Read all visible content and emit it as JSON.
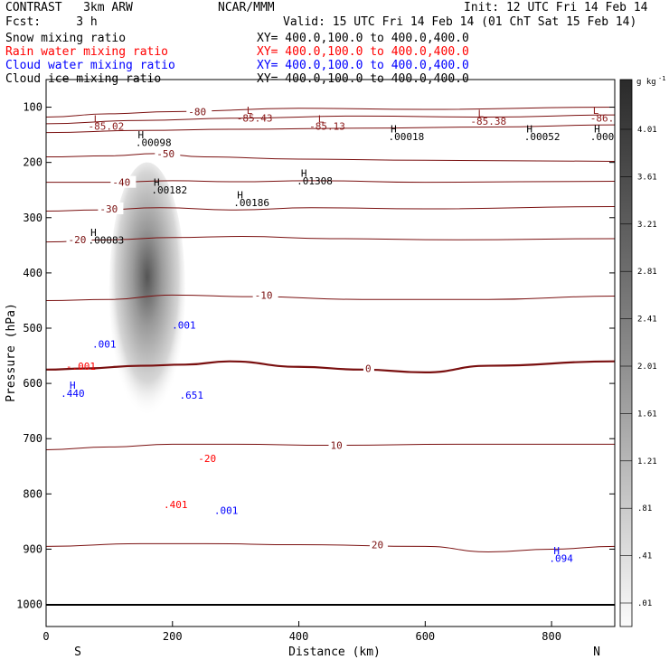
{
  "header": {
    "model": "CONTRAST   3km ARW",
    "center": "NCAR/MMM",
    "init": "Init: 12 UTC Fri 14 Feb 14",
    "fcst": "Fcst:     3 h",
    "valid": "Valid: 15 UTC Fri 14 Feb 14 (01 ChT Sat 15 Feb 14)"
  },
  "fields": [
    {
      "name": "Snow mixing ratio",
      "xy": "XY= 400.0,100.0 to 400.0,400.0",
      "color": "#000000"
    },
    {
      "name": "Rain water mixing ratio",
      "xy": "XY= 400.0,100.0 to 400.0,400.0",
      "color": "#ff0000"
    },
    {
      "name": "Cloud water mixing ratio",
      "xy": "XY= 400.0,100.0 to 400.0,400.0",
      "color": "#0000ff"
    },
    {
      "name": "Cloud ice mixing ratio",
      "xy": "XY= 400.0,100.0 to 400.0,400.0",
      "color": "#000000"
    }
  ],
  "chart_data": {
    "type": "contour",
    "xlabel": "Distance (km)",
    "ylabel": "Pressure (hPa)",
    "xlim": [
      0,
      900
    ],
    "ylim": [
      1040,
      50
    ],
    "x_ticks": [
      0,
      200,
      400,
      600,
      800
    ],
    "x_tick_labels": [
      "0",
      "200",
      "400",
      "600",
      "800"
    ],
    "y_ticks": [
      100,
      200,
      300,
      400,
      500,
      600,
      700,
      800,
      900,
      1000
    ],
    "y_tick_labels": [
      "100",
      "200",
      "300",
      "400",
      "500",
      "600",
      "700",
      "800",
      "900",
      "1000"
    ],
    "end_labels": {
      "left": "S",
      "right": "N"
    },
    "colorbar": {
      "unit": "g kg",
      "unit_exp": "-1",
      "labels": [
        "4.01",
        "3.61",
        "3.21",
        "2.81",
        "2.41",
        "2.01",
        "1.61",
        "1.21",
        ".81",
        ".41",
        ".01"
      ]
    },
    "temperature_contours": [
      {
        "value": -80,
        "label": "-80",
        "p": [
          [
            0,
            118
          ],
          [
            100,
            112
          ],
          [
            200,
            108
          ],
          [
            400,
            102
          ],
          [
            600,
            104
          ],
          [
            900,
            100
          ]
        ],
        "label_at": [
          225,
          108
        ]
      },
      {
        "value": -70,
        "label": "",
        "p": [
          [
            0,
            130
          ],
          [
            150,
            124
          ],
          [
            300,
            120
          ],
          [
            500,
            116
          ],
          [
            700,
            118
          ],
          [
            900,
            114
          ]
        ]
      },
      {
        "value": -60,
        "label": "",
        "p": [
          [
            0,
            146
          ],
          [
            150,
            142
          ],
          [
            300,
            140
          ],
          [
            500,
            138
          ],
          [
            700,
            136
          ],
          [
            900,
            132
          ]
        ]
      },
      {
        "value": -50,
        "label": "-50",
        "p": [
          [
            0,
            190
          ],
          [
            100,
            188
          ],
          [
            175,
            184
          ],
          [
            250,
            190
          ],
          [
            400,
            194
          ],
          [
            600,
            196
          ],
          [
            900,
            198
          ]
        ],
        "label_at": [
          175,
          184
        ]
      },
      {
        "value": -40,
        "label": "-40",
        "p": [
          [
            0,
            236
          ],
          [
            100,
            236
          ],
          [
            200,
            233
          ],
          [
            300,
            235
          ],
          [
            420,
            233
          ],
          [
            600,
            236
          ],
          [
            900,
            234
          ]
        ],
        "label_at": [
          105,
          236
        ]
      },
      {
        "value": -30,
        "label": "-30",
        "p": [
          [
            0,
            288
          ],
          [
            80,
            286
          ],
          [
            180,
            282
          ],
          [
            300,
            286
          ],
          [
            420,
            282
          ],
          [
            600,
            284
          ],
          [
            900,
            280
          ]
        ],
        "label_at": [
          85,
          284
        ]
      },
      {
        "value": -20,
        "label": "-20",
        "p": [
          [
            0,
            344
          ],
          [
            100,
            340
          ],
          [
            200,
            336
          ],
          [
            310,
            334
          ],
          [
            450,
            338
          ],
          [
            650,
            340
          ],
          [
            900,
            338
          ]
        ],
        "label_at": [
          35,
          340
        ]
      },
      {
        "value": -10,
        "label": "-10",
        "p": [
          [
            0,
            450
          ],
          [
            100,
            448
          ],
          [
            200,
            440
          ],
          [
            330,
            443
          ],
          [
            500,
            448
          ],
          [
            700,
            448
          ],
          [
            900,
            442
          ]
        ],
        "label_at": [
          330,
          440
        ]
      },
      {
        "value": 0,
        "label": "0",
        "bold": true,
        "p": [
          [
            0,
            575
          ],
          [
            60,
            573
          ],
          [
            150,
            568
          ],
          [
            220,
            566
          ],
          [
            290,
            560
          ],
          [
            400,
            570
          ],
          [
            500,
            575
          ],
          [
            600,
            580
          ],
          [
            700,
            568
          ],
          [
            900,
            560
          ]
        ],
        "label_at": [
          505,
          573
        ]
      },
      {
        "value": 10,
        "label": "10",
        "p": [
          [
            0,
            720
          ],
          [
            100,
            715
          ],
          [
            200,
            710
          ],
          [
            300,
            710
          ],
          [
            450,
            712
          ],
          [
            650,
            710
          ],
          [
            900,
            710
          ]
        ],
        "label_at": [
          450,
          712
        ]
      },
      {
        "value": 20,
        "label": "20",
        "p": [
          [
            0,
            895
          ],
          [
            150,
            890
          ],
          [
            250,
            890
          ],
          [
            400,
            892
          ],
          [
            600,
            895
          ],
          [
            700,
            905
          ],
          [
            800,
            900
          ],
          [
            900,
            895
          ]
        ],
        "label_at": [
          515,
          892
        ]
      }
    ],
    "annotations": [
      {
        "text": "L",
        "x": 80,
        "p": 128,
        "color": "#8b1a1a"
      },
      {
        "text": "-85.02",
        "x": 95,
        "p": 141,
        "color": "#8b1a1a"
      },
      {
        "text": "L",
        "x": 322,
        "p": 112,
        "color": "#8b1a1a"
      },
      {
        "text": "-85.43",
        "x": 330,
        "p": 126,
        "color": "#8b1a1a"
      },
      {
        "text": "L",
        "x": 435,
        "p": 128,
        "color": "#8b1a1a"
      },
      {
        "text": "-85.13",
        "x": 445,
        "p": 141,
        "color": "#8b1a1a"
      },
      {
        "text": "L",
        "x": 688,
        "p": 118,
        "color": "#8b1a1a"
      },
      {
        "text": "-85.38",
        "x": 700,
        "p": 132,
        "color": "#8b1a1a"
      },
      {
        "text": "L",
        "x": 870,
        "p": 112,
        "color": "#8b1a1a"
      },
      {
        "text": "-86.",
        "x": 880,
        "p": 126,
        "color": "#8b1a1a"
      },
      {
        "text": "H",
        "x": 150,
        "p": 156,
        "color": "#000"
      },
      {
        "text": ".00098",
        "x": 170,
        "p": 170,
        "color": "#000"
      },
      {
        "text": "H",
        "x": 550,
        "p": 146,
        "color": "#000"
      },
      {
        "text": ".00018",
        "x": 570,
        "p": 160,
        "color": "#000"
      },
      {
        "text": "H",
        "x": 765,
        "p": 146,
        "color": "#000"
      },
      {
        "text": ".00052",
        "x": 785,
        "p": 160,
        "color": "#000"
      },
      {
        "text": "H",
        "x": 872,
        "p": 146,
        "color": "#000"
      },
      {
        "text": ".000",
        "x": 880,
        "p": 160,
        "color": "#000"
      },
      {
        "text": "H",
        "x": 175,
        "p": 242,
        "color": "#000"
      },
      {
        "text": ".00182",
        "x": 195,
        "p": 256,
        "color": "#000"
      },
      {
        "text": "H",
        "x": 307,
        "p": 265,
        "color": "#000"
      },
      {
        "text": ".00186",
        "x": 325,
        "p": 279,
        "color": "#000"
      },
      {
        "text": "H",
        "x": 408,
        "p": 226,
        "color": "#000"
      },
      {
        "text": ".01308",
        "x": 425,
        "p": 240,
        "color": "#000"
      },
      {
        "text": "H",
        "x": 75,
        "p": 333,
        "color": "#000"
      },
      {
        "text": ".00083",
        "x": 95,
        "p": 347,
        "color": "#000"
      },
      {
        "text": ".001",
        "x": 92,
        "p": 535,
        "color": "#0000ff"
      },
      {
        "text": ".001",
        "x": 218,
        "p": 501,
        "color": "#0000ff"
      },
      {
        "text": "H",
        "x": 42,
        "p": 610,
        "color": "#0000ff"
      },
      {
        "text": ".440",
        "x": 42,
        "p": 624,
        "color": "#0000ff"
      },
      {
        "text": ".651",
        "x": 230,
        "p": 628,
        "color": "#0000ff"
      },
      {
        "text": ".001",
        "x": 285,
        "p": 836,
        "color": "#0000ff"
      },
      {
        "text": "H",
        "x": 808,
        "p": 909,
        "color": "#0000ff"
      },
      {
        "text": ".094",
        "x": 815,
        "p": 923,
        "color": "#0000ff"
      },
      {
        "text": "-.001",
        "x": 55,
        "p": 575,
        "color": "#ff0000"
      },
      {
        "text": ".401",
        "x": 205,
        "p": 826,
        "color": "#ff0000"
      },
      {
        "text": "-20",
        "x": 255,
        "p": 742,
        "color": "#ff0000"
      }
    ],
    "shading": {
      "x_center": 160,
      "x_width": 60,
      "p_top": 200,
      "p_bottom": 660,
      "peak_g_kg": 3.6
    }
  }
}
